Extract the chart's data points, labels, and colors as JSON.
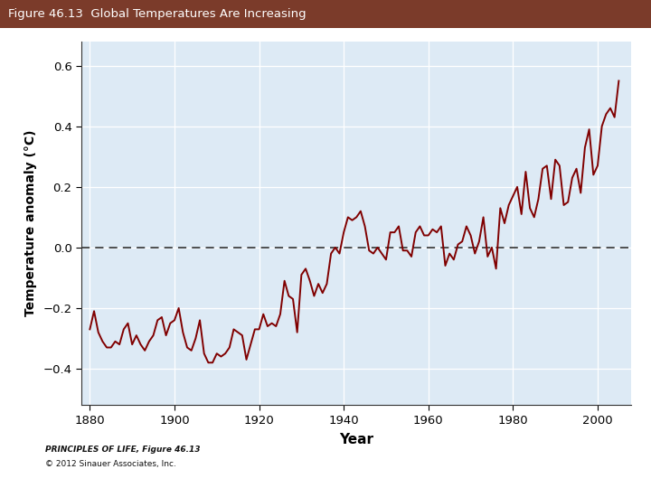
{
  "title": "Figure 46.13  Global Temperatures Are Increasing",
  "title_bg_color": "#7B3B2A",
  "title_text_color": "#FFFFFF",
  "xlabel": "Year",
  "ylabel": "Temperature anomaly (°C)",
  "xlim": [
    1878,
    2008
  ],
  "ylim": [
    -0.52,
    0.68
  ],
  "yticks": [
    -0.4,
    -0.2,
    0,
    0.2,
    0.4,
    0.6
  ],
  "xticks": [
    1880,
    1900,
    1920,
    1940,
    1960,
    1980,
    2000
  ],
  "plot_bg_color": "#DDEAF5",
  "line_color": "#800000",
  "line_width": 1.4,
  "grid_color": "#FFFFFF",
  "caption_line1": "PRINCIPLES OF LIFE, Figure 46.13",
  "caption_line2": "© 2012 Sinauer Associates, Inc.",
  "years": [
    1880,
    1881,
    1882,
    1883,
    1884,
    1885,
    1886,
    1887,
    1888,
    1889,
    1890,
    1891,
    1892,
    1893,
    1894,
    1895,
    1896,
    1897,
    1898,
    1899,
    1900,
    1901,
    1902,
    1903,
    1904,
    1905,
    1906,
    1907,
    1908,
    1909,
    1910,
    1911,
    1912,
    1913,
    1914,
    1915,
    1916,
    1917,
    1918,
    1919,
    1920,
    1921,
    1922,
    1923,
    1924,
    1925,
    1926,
    1927,
    1928,
    1929,
    1930,
    1931,
    1932,
    1933,
    1934,
    1935,
    1936,
    1937,
    1938,
    1939,
    1940,
    1941,
    1942,
    1943,
    1944,
    1945,
    1946,
    1947,
    1948,
    1949,
    1950,
    1951,
    1952,
    1953,
    1954,
    1955,
    1956,
    1957,
    1958,
    1959,
    1960,
    1961,
    1962,
    1963,
    1964,
    1965,
    1966,
    1967,
    1968,
    1969,
    1970,
    1971,
    1972,
    1973,
    1974,
    1975,
    1976,
    1977,
    1978,
    1979,
    1980,
    1981,
    1982,
    1983,
    1984,
    1985,
    1986,
    1987,
    1988,
    1989,
    1990,
    1991,
    1992,
    1993,
    1994,
    1995,
    1996,
    1997,
    1998,
    1999,
    2000,
    2001,
    2002,
    2003,
    2004,
    2005
  ],
  "anomalies": [
    -0.27,
    -0.21,
    -0.28,
    -0.31,
    -0.33,
    -0.33,
    -0.31,
    -0.32,
    -0.27,
    -0.25,
    -0.32,
    -0.29,
    -0.32,
    -0.34,
    -0.31,
    -0.29,
    -0.24,
    -0.23,
    -0.29,
    -0.25,
    -0.24,
    -0.2,
    -0.28,
    -0.33,
    -0.34,
    -0.3,
    -0.24,
    -0.35,
    -0.38,
    -0.38,
    -0.35,
    -0.36,
    -0.35,
    -0.33,
    -0.27,
    -0.28,
    -0.29,
    -0.37,
    -0.32,
    -0.27,
    -0.27,
    -0.22,
    -0.26,
    -0.25,
    -0.26,
    -0.22,
    -0.11,
    -0.16,
    -0.17,
    -0.28,
    -0.09,
    -0.07,
    -0.11,
    -0.16,
    -0.12,
    -0.15,
    -0.12,
    -0.02,
    -0.0,
    -0.02,
    0.05,
    0.1,
    0.09,
    0.1,
    0.12,
    0.07,
    -0.01,
    -0.02,
    0.0,
    -0.02,
    -0.04,
    0.05,
    0.05,
    0.07,
    -0.01,
    -0.01,
    -0.03,
    0.05,
    0.07,
    0.04,
    0.04,
    0.06,
    0.05,
    0.07,
    -0.06,
    -0.02,
    -0.04,
    0.01,
    0.02,
    0.07,
    0.04,
    -0.02,
    0.02,
    0.1,
    -0.03,
    0.0,
    -0.07,
    0.13,
    0.08,
    0.14,
    0.17,
    0.2,
    0.11,
    0.25,
    0.13,
    0.1,
    0.16,
    0.26,
    0.27,
    0.16,
    0.29,
    0.27,
    0.14,
    0.15,
    0.23,
    0.26,
    0.18,
    0.33,
    0.39,
    0.24,
    0.27,
    0.4,
    0.44,
    0.46,
    0.43,
    0.55
  ]
}
